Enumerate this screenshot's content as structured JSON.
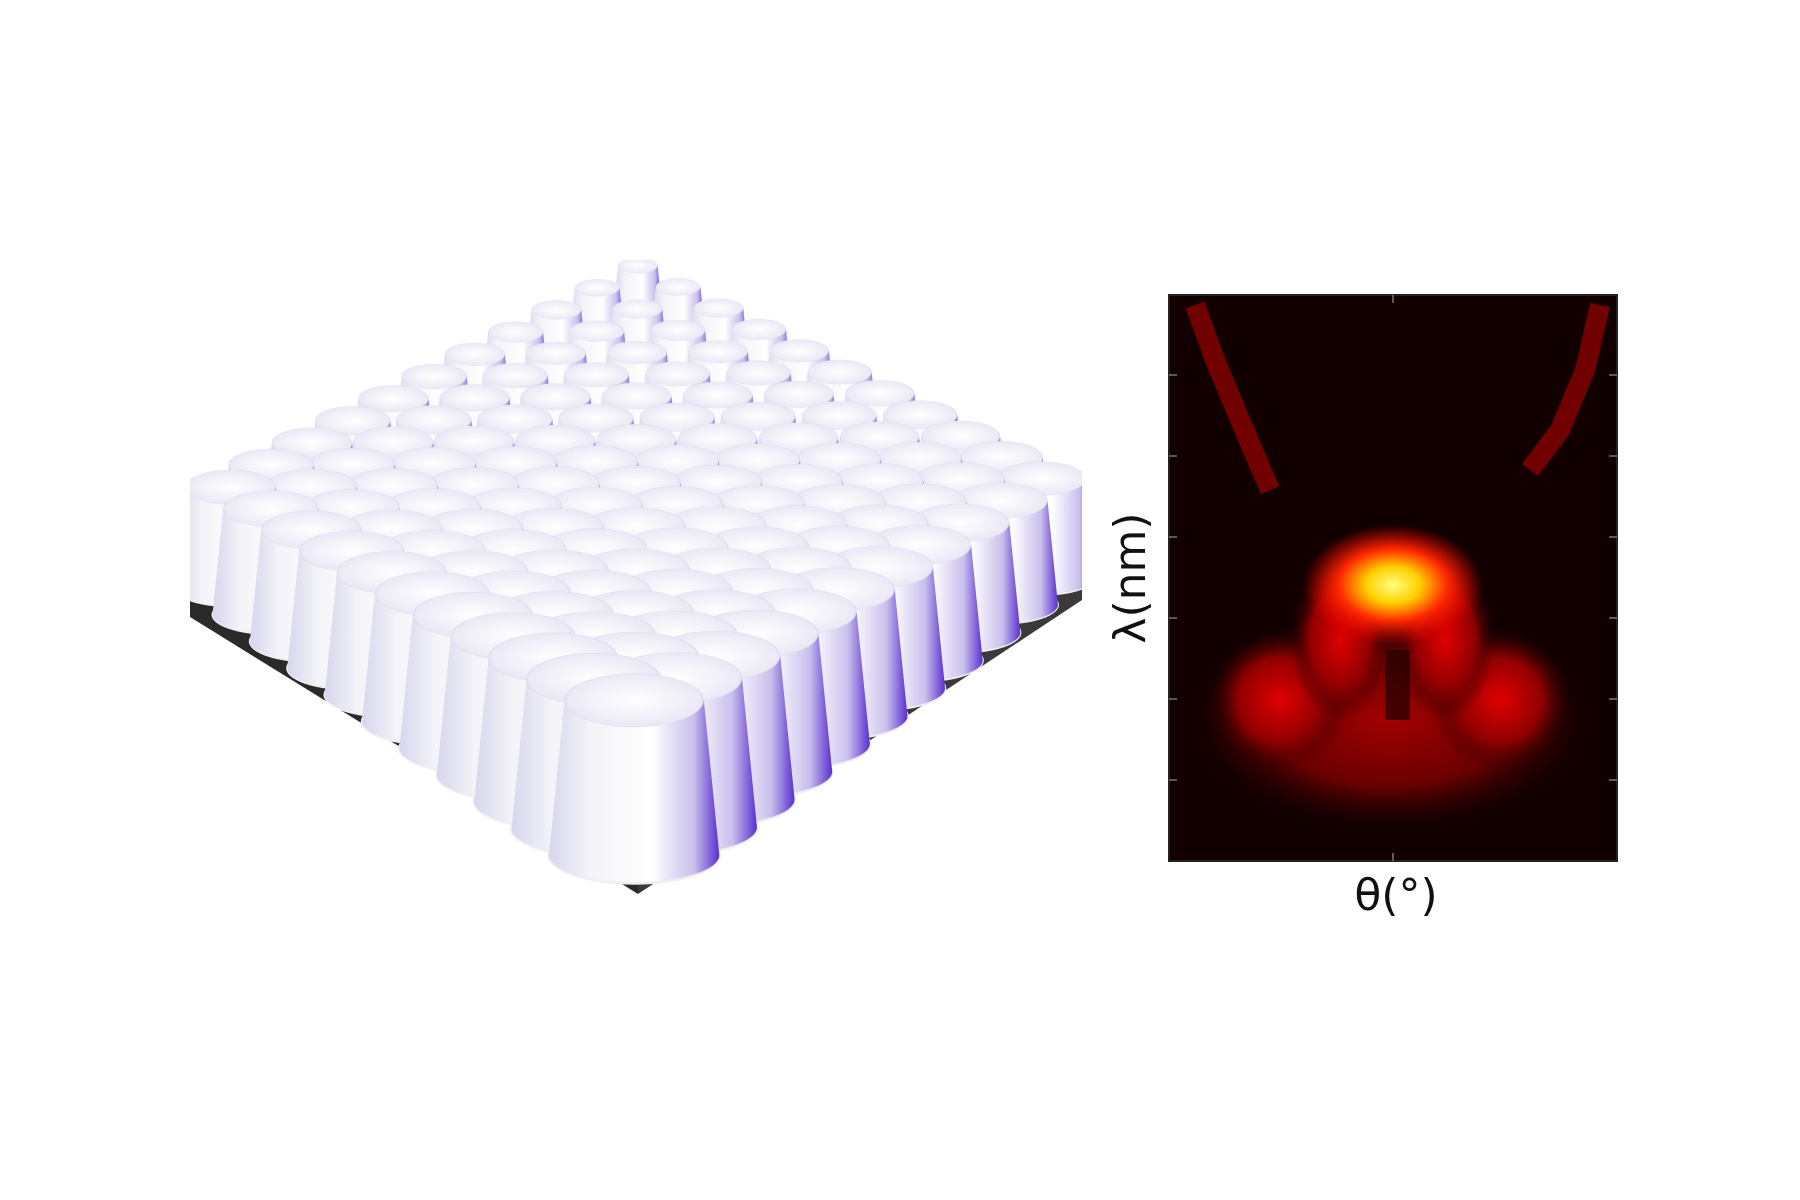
{
  "figure": {
    "heatmap": {
      "x_label": "θ(°)",
      "y_label": "λ(nm)"
    }
  }
}
